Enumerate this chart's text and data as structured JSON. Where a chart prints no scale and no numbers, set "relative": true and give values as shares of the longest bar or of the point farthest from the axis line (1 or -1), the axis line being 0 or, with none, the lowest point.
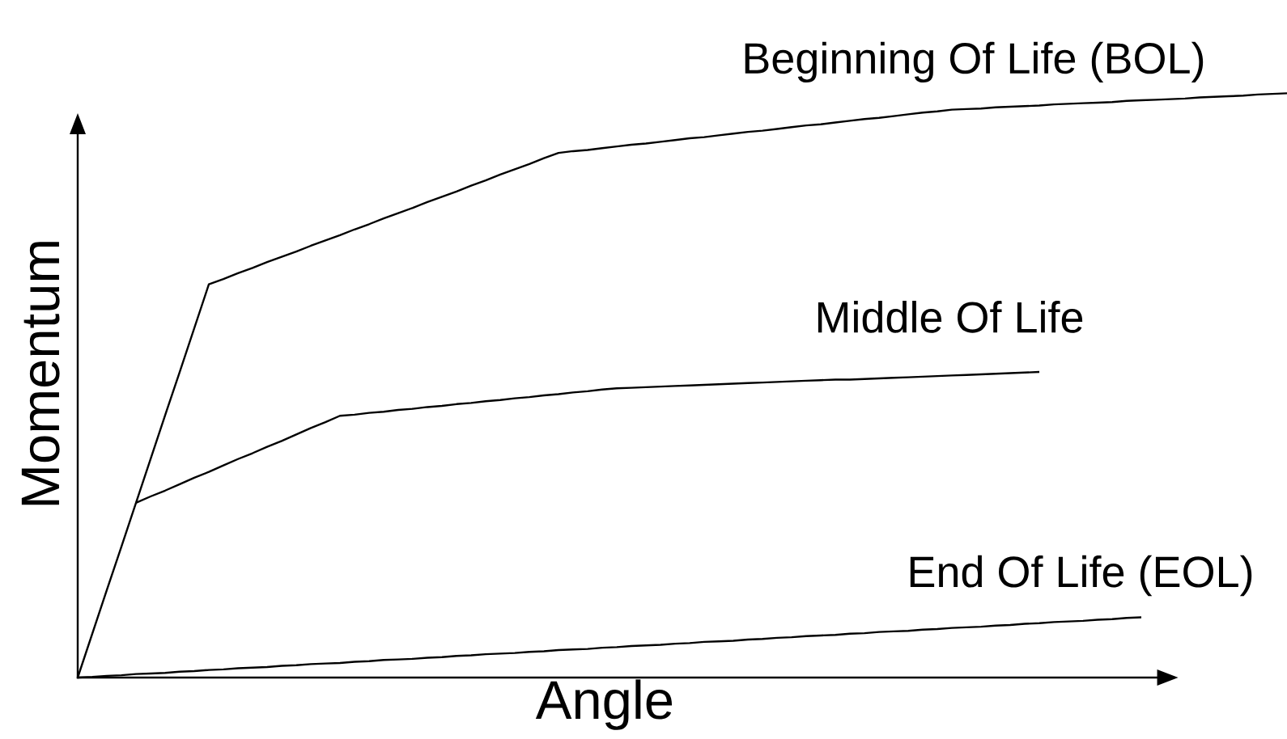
{
  "chart_data": {
    "type": "line",
    "relative": true,
    "xlabel": "Angle",
    "ylabel": "Momentum",
    "marker": "none",
    "legend": false,
    "categories": [
      null,
      null,
      null,
      null,
      null,
      null,
      null,
      null,
      null,
      null,
      null,
      null,
      null,
      null,
      null,
      null,
      null,
      null,
      null,
      null,
      null,
      null,
      null,
      null,
      null,
      null,
      null,
      null,
      null,
      null,
      null,
      null,
      null,
      null,
      null,
      null,
      null,
      null,
      null,
      null,
      null,
      null,
      null,
      null,
      null,
      null,
      null,
      null,
      null,
      null,
      null,
      null,
      null,
      null,
      null,
      null,
      null,
      null,
      null,
      null,
      null,
      null,
      null,
      null,
      null,
      null,
      null,
      null,
      null,
      null,
      null,
      null,
      null,
      null,
      null,
      null,
      null,
      null,
      null,
      null,
      null,
      null,
      null,
      null
    ],
    "series": [
      {
        "name": "Beginning Of Life (BOL)",
        "color": "#000000",
        "values": [
          0,
          0.075,
          0.15,
          0.224,
          0.299,
          0.374,
          0.449,
          0.523,
          0.598,
          0.673,
          0.682,
          0.692,
          0.701,
          0.711,
          0.72,
          0.729,
          0.739,
          0.748,
          0.757,
          0.767,
          0.776,
          0.786,
          0.795,
          0.804,
          0.814,
          0.823,
          0.832,
          0.842,
          0.851,
          0.861,
          0.87,
          0.879,
          0.889,
          0.898,
          0.901,
          0.903,
          0.906,
          0.909,
          0.912,
          0.914,
          0.917,
          0.92,
          0.923,
          0.925,
          0.928,
          0.931,
          0.934,
          0.936,
          0.939,
          0.942,
          0.945,
          0.947,
          0.95,
          0.953,
          0.956,
          0.958,
          0.961,
          0.964,
          0.967,
          0.969,
          0.972,
          0.973,
          0.974,
          0.976,
          0.977,
          0.978,
          0.979,
          0.981,
          0.982,
          0.983,
          0.984,
          0.985,
          0.987,
          0.988,
          0.989,
          0.99,
          0.991,
          0.993,
          0.994,
          0.995,
          0.996,
          0.998,
          0.999,
          1
        ]
      },
      {
        "name": "Middle Of Life",
        "color": "#000000",
        "values": [
          null,
          null,
          null,
          null,
          0.299,
          0.31,
          0.32,
          0.331,
          0.342,
          0.352,
          0.363,
          0.374,
          0.384,
          0.395,
          0.405,
          0.416,
          0.427,
          0.437,
          0.448,
          0.45,
          0.453,
          0.455,
          0.458,
          0.46,
          0.463,
          0.465,
          0.468,
          0.47,
          0.473,
          0.475,
          0.478,
          0.48,
          0.483,
          0.485,
          0.488,
          0.49,
          0.493,
          0.495,
          0.496,
          0.497,
          0.498,
          0.499,
          0.5,
          0.501,
          0.502,
          0.503,
          0.504,
          0.505,
          0.506,
          0.507,
          0.508,
          0.509,
          0.51,
          0.51,
          0.511,
          0.512,
          0.513,
          0.514,
          0.515,
          0.516,
          0.517,
          0.518,
          0.519,
          0.52,
          0.521,
          0.522,
          0.523,
          null,
          null,
          null,
          null,
          null,
          null,
          null,
          null,
          null,
          null,
          null,
          null,
          null,
          null,
          null,
          null,
          null
        ]
      },
      {
        "name": "End Of Life (EOL)",
        "color": "#000000",
        "values": [
          0,
          0.001,
          0.003,
          0.004,
          0.006,
          0.007,
          0.008,
          0.01,
          0.011,
          0.013,
          0.014,
          0.016,
          0.017,
          0.018,
          0.02,
          0.021,
          0.023,
          0.024,
          0.025,
          0.027,
          0.028,
          0.03,
          0.031,
          0.032,
          0.034,
          0.035,
          0.037,
          0.038,
          0.04,
          0.041,
          0.042,
          0.044,
          0.045,
          0.047,
          0.048,
          0.049,
          0.051,
          0.052,
          0.054,
          0.055,
          0.056,
          0.058,
          0.059,
          0.061,
          0.062,
          0.063,
          0.065,
          0.066,
          0.068,
          0.069,
          0.071,
          0.072,
          0.073,
          0.075,
          0.076,
          0.078,
          0.079,
          0.08,
          0.082,
          0.083,
          0.085,
          0.086,
          0.087,
          0.089,
          0.09,
          0.092,
          0.093,
          0.095,
          0.096,
          0.097,
          0.099,
          0.1,
          0.102,
          0.103,
          null,
          null,
          null,
          null,
          null,
          null,
          null,
          null,
          null,
          null
        ]
      }
    ]
  }
}
